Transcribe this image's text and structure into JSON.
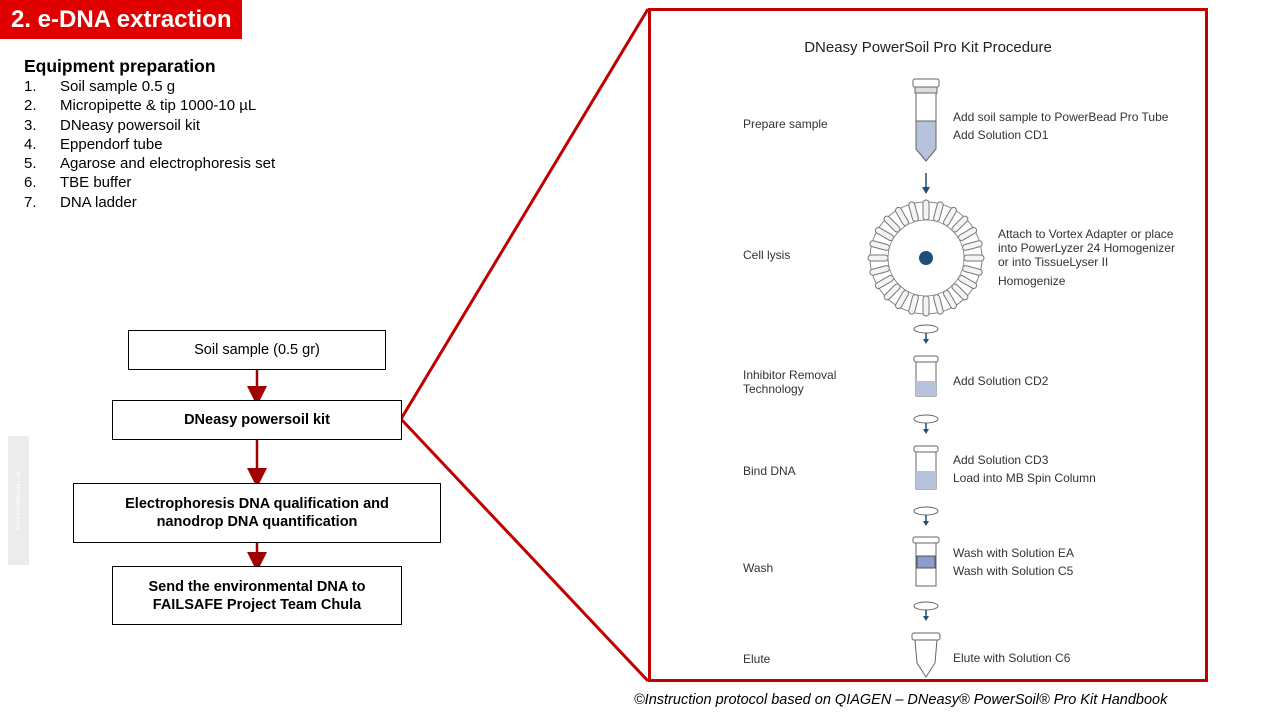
{
  "header": {
    "title": "2. e-DNA extraction"
  },
  "equipment": {
    "heading": "Equipment preparation",
    "items": [
      {
        "num": "1.",
        "text": "Soil sample 0.5 g"
      },
      {
        "num": "2.",
        "text": "Micropipette & tip 1000-10 µL"
      },
      {
        "num": "3.",
        "text": "DNeasy powersoil kit"
      },
      {
        "num": "4.",
        "text": "Eppendorf tube"
      },
      {
        "num": "5.",
        "text": "Agarose and electrophoresis set"
      },
      {
        "num": "6.",
        "text": "TBE buffer"
      },
      {
        "num": "7.",
        "text": "DNA ladder"
      }
    ]
  },
  "flow": {
    "step1": "Soil sample (0.5 gr)",
    "step2": "DNeasy powersoil kit",
    "step3": "Electrophoresis DNA qualification and nanodrop DNA quantification",
    "step4": "Send the environmental DNA to FAILSAFE Project Team Chula"
  },
  "watermark": "©Nat Pornthoopa Lab",
  "procedure": {
    "title": "DNeasy PowerSoil Pro Kit Procedure",
    "steps": [
      {
        "label": "Prepare sample",
        "desc": [
          "Add soil sample to PowerBead Pro Tube",
          "Add Solution CD1"
        ]
      },
      {
        "label": "Cell lysis",
        "desc": [
          "Attach to Vortex Adapter or place",
          "into PowerLyzer 24 Homogenizer",
          "or into TissueLyser II",
          "Homogenize"
        ]
      },
      {
        "label": "Inhibitor Removal Technology",
        "desc": [
          "Add Solution CD2"
        ]
      },
      {
        "label": "Bind DNA",
        "desc": [
          "Add Solution CD3",
          "Load into MB Spin Column"
        ]
      },
      {
        "label": "Wash",
        "desc": [
          "Wash with Solution EA",
          "Wash with Solution C5"
        ]
      },
      {
        "label": "Elute",
        "desc": [
          "Elute with Solution C6"
        ]
      }
    ]
  },
  "footer": {
    "credit": "©Instruction protocol based on QIAGEN – DNeasy® PowerSoil® Pro Kit Handbook"
  },
  "colors": {
    "title_bg": "#e00000",
    "frame": "#c00000",
    "arrow": "#a00000",
    "icon_blue": "#1f4e79"
  }
}
